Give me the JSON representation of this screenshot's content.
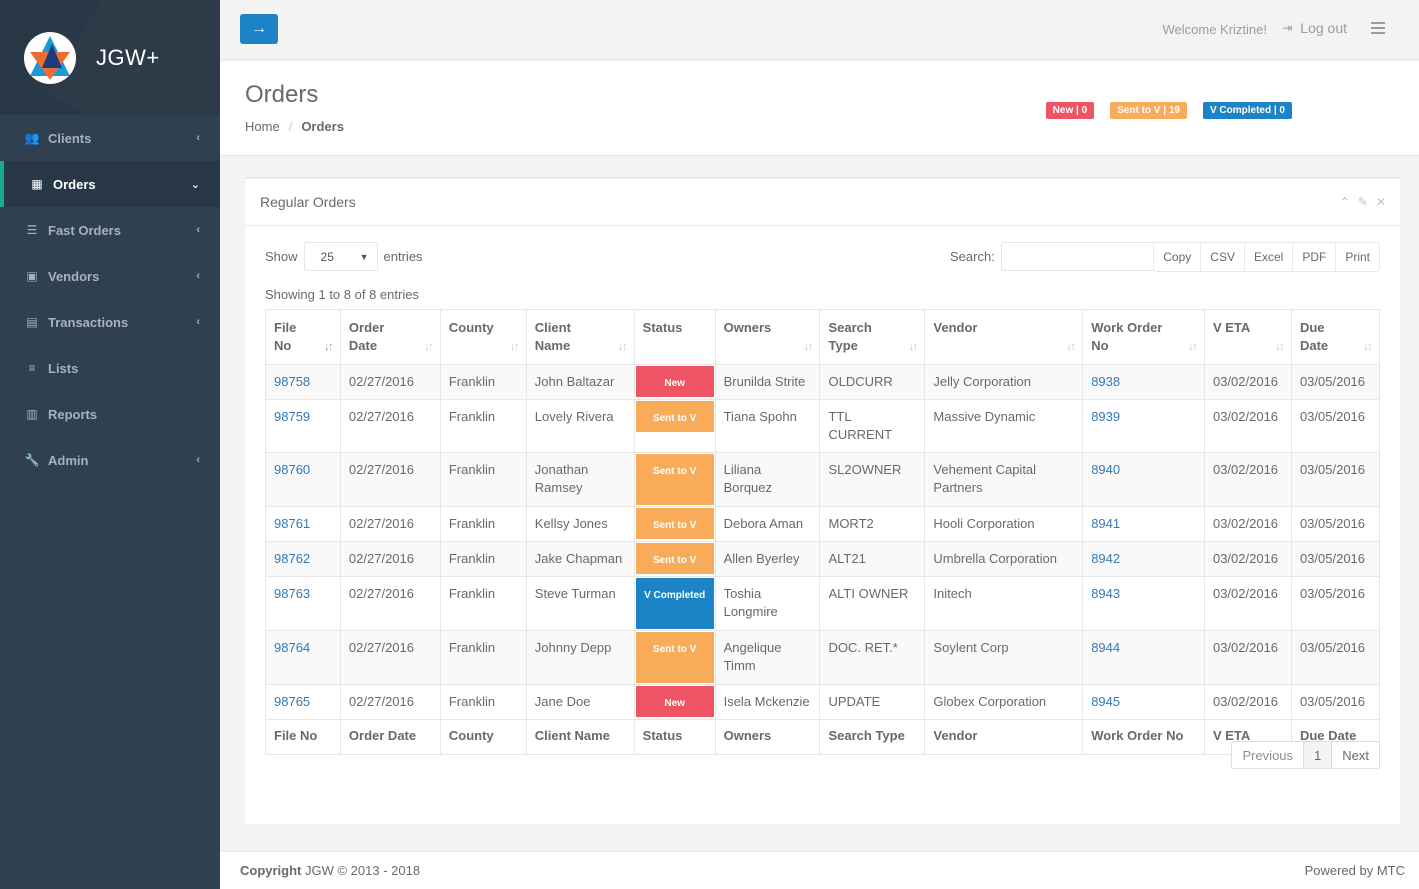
{
  "brand": {
    "name": "JGW+"
  },
  "sidebar": {
    "items": [
      {
        "label": "Clients",
        "icon": "users-icon",
        "chevron": "‹",
        "active": false
      },
      {
        "label": "Orders",
        "icon": "table-icon",
        "chevron": "⌄",
        "active": true
      },
      {
        "label": "Fast Orders",
        "icon": "list-icon",
        "chevron": "‹",
        "active": false
      },
      {
        "label": "Vendors",
        "icon": "vcard-icon",
        "chevron": "‹",
        "active": false
      },
      {
        "label": "Transactions",
        "icon": "book-icon",
        "chevron": "‹",
        "active": false
      },
      {
        "label": "Lists",
        "icon": "list-ul-icon",
        "chevron": "",
        "active": false
      },
      {
        "label": "Reports",
        "icon": "bar-chart-icon",
        "chevron": "",
        "active": false
      },
      {
        "label": "Admin",
        "icon": "wrench-icon",
        "chevron": "‹",
        "active": false
      }
    ]
  },
  "topbar": {
    "toggle_icon": "→",
    "welcome": "Welcome Kriztine!",
    "logout_label": "Log out"
  },
  "heading": {
    "title": "Orders",
    "breadcrumb": {
      "home": "Home",
      "separator": "/",
      "current": "Orders"
    },
    "badges": [
      {
        "label": "New | 0",
        "color": "#ed5565"
      },
      {
        "label": "Sent to V | 19",
        "color": "#f8ac59"
      },
      {
        "label": "V Completed | 0",
        "color": "#1c84c6"
      }
    ]
  },
  "panel": {
    "title": "Regular Orders",
    "show_label": "Show",
    "page_size": "25",
    "entries_label": "entries",
    "search_label": "Search:",
    "search_value": "",
    "export_buttons": [
      "Copy",
      "CSV",
      "Excel",
      "PDF",
      "Print"
    ],
    "info": "Showing 1 to 8 of 8 entries",
    "pager": {
      "previous": "Previous",
      "current": "1",
      "next": "Next"
    }
  },
  "table": {
    "headers": [
      [
        "File",
        "No"
      ],
      [
        "Order",
        "Date"
      ],
      [
        "County",
        ""
      ],
      [
        "Client",
        "Name"
      ],
      [
        "Status",
        ""
      ],
      [
        "Owners",
        ""
      ],
      [
        "Search",
        "Type"
      ],
      [
        "Vendor",
        ""
      ],
      [
        "Work Order",
        "No"
      ],
      [
        "V ETA",
        ""
      ],
      [
        "Due",
        "Date"
      ]
    ],
    "footers": [
      "File No",
      "Order Date",
      "County",
      "Client Name",
      "Status",
      "Owners",
      "Search Type",
      "Vendor",
      "Work Order No",
      "V ETA",
      "Due Date"
    ],
    "rows": [
      {
        "file_no": "98758",
        "order_date": "02/27/2016",
        "county": "Franklin",
        "client": "John Baltazar",
        "status": "New",
        "status_type": "new",
        "owners": "Brunilda Strite",
        "search_type": "OLDCURR",
        "vendor": "Jelly Corporation",
        "work_order": "8938",
        "v_eta": "03/02/2016",
        "due_date": "03/05/2016"
      },
      {
        "file_no": "98759",
        "order_date": "02/27/2016",
        "county": "Franklin",
        "client": "Lovely Rivera",
        "status": "Sent to V",
        "status_type": "sent",
        "owners": "Tiana Spohn",
        "search_type": "TTL CURRENT",
        "vendor": "Massive Dynamic",
        "work_order": "8939",
        "v_eta": "03/02/2016",
        "due_date": "03/05/2016"
      },
      {
        "file_no": "98760",
        "order_date": "02/27/2016",
        "county": "Franklin",
        "client": "Jonathan Ramsey",
        "status": "Sent to V",
        "status_type": "sent",
        "owners": "Liliana Borquez",
        "search_type": "SL2OWNER",
        "vendor": "Vehement Capital Partners",
        "work_order": "8940",
        "v_eta": "03/02/2016",
        "due_date": "03/05/2016"
      },
      {
        "file_no": "98761",
        "order_date": "02/27/2016",
        "county": "Franklin",
        "client": "Kellsy Jones",
        "status": "Sent to V",
        "status_type": "sent",
        "owners": "Debora Aman",
        "search_type": "MORT2",
        "vendor": "Hooli Corporation",
        "work_order": "8941",
        "v_eta": "03/02/2016",
        "due_date": "03/05/2016"
      },
      {
        "file_no": "98762",
        "order_date": "02/27/2016",
        "county": "Franklin",
        "client": "Jake Chapman",
        "status": "Sent to V",
        "status_type": "sent",
        "owners": "Allen Byerley",
        "search_type": "ALT21",
        "vendor": "Umbrella Corporation",
        "work_order": "8942",
        "v_eta": "03/02/2016",
        "due_date": "03/05/2016"
      },
      {
        "file_no": "98763",
        "order_date": "02/27/2016",
        "county": "Franklin",
        "client": "Steve Turman",
        "status": "V Completed",
        "status_type": "done",
        "owners": "Toshia Longmire",
        "search_type": "ALTI OWNER",
        "vendor": "Initech",
        "work_order": "8943",
        "v_eta": "03/02/2016",
        "due_date": "03/05/2016"
      },
      {
        "file_no": "98764",
        "order_date": "02/27/2016",
        "county": "Franklin",
        "client": "Johnny Depp",
        "status": "Sent to V",
        "status_type": "sent",
        "owners": "Angelique Timm",
        "search_type": "DOC. RET.*",
        "vendor": "Soylent Corp",
        "work_order": "8944",
        "v_eta": "03/02/2016",
        "due_date": "03/05/2016"
      },
      {
        "file_no": "98765",
        "order_date": "02/27/2016",
        "county": "Franklin",
        "client": "Jane Doe",
        "status": "New",
        "status_type": "new",
        "owners": "Isela Mckenzie",
        "search_type": "UPDATE",
        "vendor": "Globex Corporation",
        "work_order": "8945",
        "v_eta": "03/02/2016",
        "due_date": "03/05/2016"
      }
    ]
  },
  "footer": {
    "copyright_strong": "Copyright",
    "copyright_text": " JGW © 2013 - 2018",
    "powered": "Powered by MTC"
  }
}
